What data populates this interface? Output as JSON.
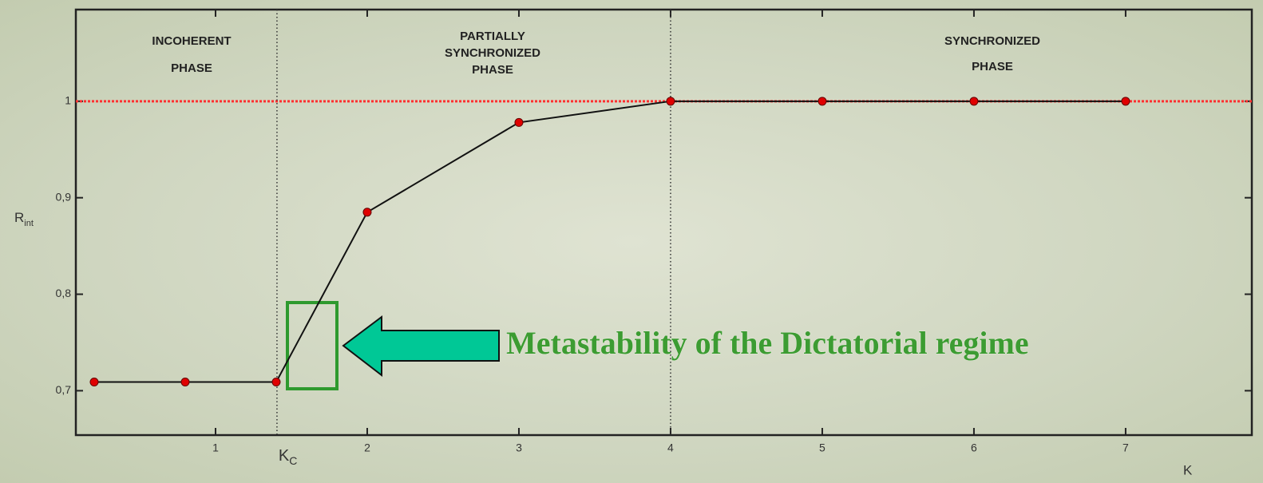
{
  "chart_data": {
    "type": "line",
    "xlabel": "K",
    "ylabel": "R",
    "ylabel_sub": "int",
    "phase_labels": [
      [
        "INCOHERENT",
        "PHASE"
      ],
      [
        "PARTIALLY",
        "SYNCHRONIZED",
        "PHASE"
      ],
      [
        "SYNCHRONIZED",
        "PHASE"
      ]
    ],
    "annotation": "Metastability of the Dictatorial regime",
    "kc": {
      "value": 1.405,
      "label": "K",
      "subscript": "C"
    },
    "vline": 4,
    "hline": 1,
    "xlim": [
      0.079,
      7.832
    ],
    "xticks": [
      1,
      2,
      3,
      4,
      5,
      6,
      7
    ],
    "ylim": [
      0.654,
      1.095
    ],
    "yticks": [
      {
        "value": 0.7,
        "label": "0,7"
      },
      {
        "value": 0.8,
        "label": "0,8"
      },
      {
        "value": 0.9,
        "label": "0,9"
      },
      1
    ],
    "series": [
      {
        "color": "#e00000",
        "x": [
          0.2,
          0.8,
          1.4,
          2.0,
          3.0,
          4,
          5,
          6,
          7
        ],
        "values": [
          0.709,
          0.709,
          0.709,
          0.885,
          0.978,
          1,
          1,
          1,
          1
        ]
      }
    ]
  }
}
